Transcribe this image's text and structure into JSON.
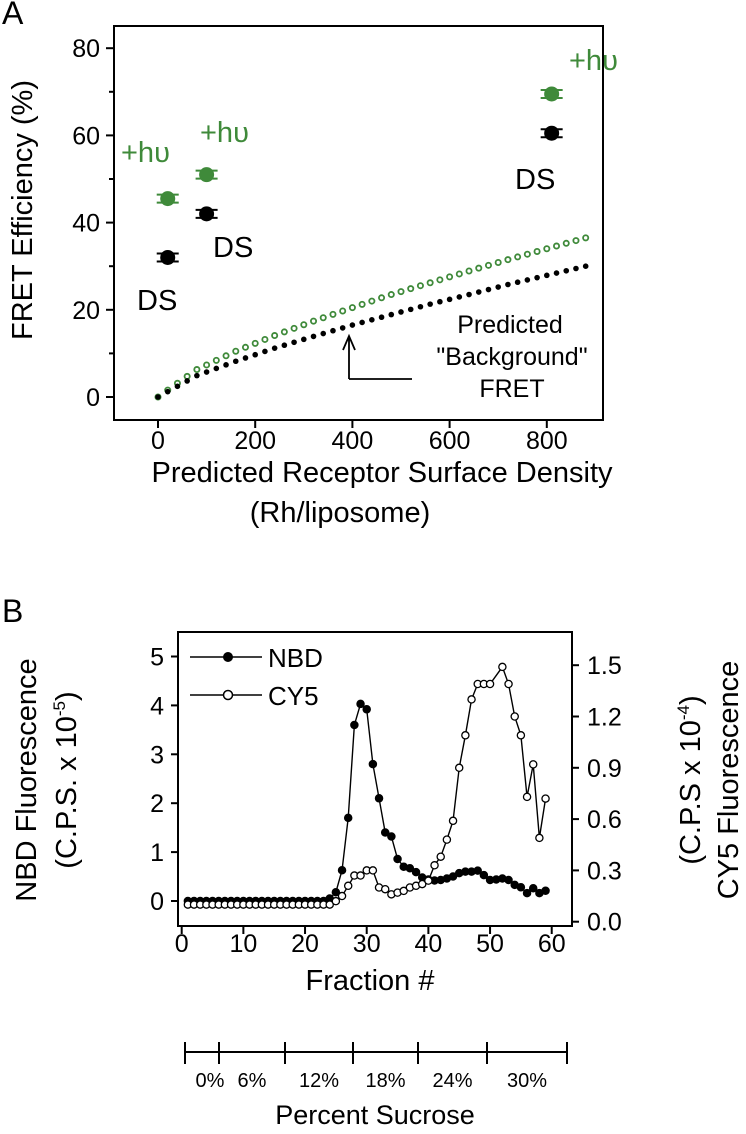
{
  "chart_data": [
    {
      "panel": "A",
      "type": "scatter",
      "panel_label": "A",
      "xlabel": "Predicted Receptor Surface Density",
      "xlabel2": "(Rh/liposome)",
      "ylabel": "FRET Efficiency (%)",
      "xlim": [
        -90,
        900
      ],
      "ylim": [
        -5,
        86
      ],
      "xticks": [
        "0",
        "200",
        "400",
        "600",
        "800"
      ],
      "yticks": [
        "0",
        "20",
        "40",
        "60",
        "80"
      ],
      "colors": {
        "light": "#3f8a3a",
        "dark": "#000000"
      },
      "series": [
        {
          "name": "+hυ",
          "color": "#3f8a3a",
          "points": [
            {
              "x": 20,
              "y": 45.5
            },
            {
              "x": 100,
              "y": 51
            },
            {
              "x": 810,
              "y": 69.5
            }
          ]
        },
        {
          "name": "DS",
          "color": "#000000",
          "points": [
            {
              "x": 20,
              "y": 32
            },
            {
              "x": 100,
              "y": 42
            },
            {
              "x": 810,
              "y": 60.5
            }
          ]
        }
      ],
      "predicted_lines": [
        {
          "name": "predicted +hυ",
          "color": "#3f8a3a",
          "x": [
            0,
            80,
            160,
            240,
            320,
            400,
            480,
            560,
            640,
            720,
            800,
            880
          ],
          "y": [
            0,
            6.3,
            10.5,
            14.1,
            17.4,
            20.5,
            23.5,
            26.2,
            28.9,
            31.5,
            34.0,
            36.5
          ]
        },
        {
          "name": "predicted DS",
          "color": "#000000",
          "x": [
            0,
            80,
            160,
            240,
            320,
            400,
            480,
            560,
            640,
            720,
            800,
            880
          ],
          "y": [
            0,
            4.9,
            8.2,
            11.2,
            13.9,
            16.5,
            18.9,
            21.3,
            23.5,
            25.8,
            27.9,
            30.0
          ]
        }
      ],
      "annotations": {
        "hv": "+hυ",
        "ds": "DS",
        "predicted1": "Predicted",
        "predicted2": "\"Background\"",
        "predicted3": "FRET"
      }
    },
    {
      "panel": "B",
      "type": "line",
      "panel_label": "B",
      "xlabel": "Fraction #",
      "ylabel_left": "NBD Fluorescence",
      "ylabel_left2": "(C.P.S. x 10",
      "ylabel_left_exp": "-5",
      "ylabel_right": "CY5 Fluorescence",
      "ylabel_right2": "(C.P.S x 10",
      "ylabel_right_exp": "-4",
      "xlim": [
        0,
        62
      ],
      "ylim_left": [
        -0.4,
        5.1
      ],
      "ylim_right": [
        -0.05,
        1.6
      ],
      "xticks": [
        "0",
        "10",
        "20",
        "30",
        "40",
        "50",
        "60"
      ],
      "yticks_left": [
        "0",
        "1",
        "2",
        "3",
        "4",
        "5"
      ],
      "yticks_right": [
        "0.0",
        "0.3",
        "0.6",
        "0.9",
        "1.2",
        "1.5"
      ],
      "legend": [
        "NBD",
        "CY5"
      ],
      "legend_position": "top-left",
      "series": [
        {
          "name": "NBD",
          "axis": "left",
          "filled": true,
          "x": [
            1,
            2,
            3,
            4,
            5,
            6,
            7,
            8,
            9,
            10,
            11,
            12,
            13,
            14,
            15,
            16,
            17,
            18,
            19,
            20,
            21,
            22,
            23,
            24,
            25,
            26,
            27,
            28,
            29,
            30,
            31,
            32,
            33,
            34,
            35,
            36,
            37,
            38,
            39,
            40,
            41,
            42,
            43,
            44,
            45,
            46,
            47,
            48,
            49,
            50,
            51,
            52,
            53,
            54,
            55,
            56,
            57,
            58,
            59
          ],
          "y": [
            0,
            0,
            0,
            0,
            0,
            0,
            0,
            0,
            0,
            0,
            0,
            0,
            0,
            0,
            0,
            0,
            0,
            0,
            0,
            0,
            0,
            0,
            0,
            0.05,
            0.18,
            0.63,
            1.7,
            3.6,
            4.03,
            3.92,
            2.8,
            2.1,
            1.4,
            1.32,
            0.86,
            0.7,
            0.67,
            0.59,
            0.48,
            0.44,
            0.42,
            0.43,
            0.46,
            0.5,
            0.57,
            0.6,
            0.6,
            0.62,
            0.53,
            0.43,
            0.44,
            0.46,
            0.43,
            0.33,
            0.28,
            0.16,
            0.26,
            0.16,
            0.21
          ]
        },
        {
          "name": "CY5",
          "axis": "right",
          "filled": false,
          "x": [
            1,
            2,
            3,
            4,
            5,
            6,
            7,
            8,
            9,
            10,
            11,
            12,
            13,
            14,
            15,
            16,
            17,
            18,
            19,
            20,
            21,
            22,
            23,
            24,
            25,
            26,
            27,
            28,
            29,
            30,
            31,
            32,
            33,
            34,
            35,
            36,
            37,
            38,
            39,
            40,
            41,
            42,
            43,
            44,
            45,
            46,
            47,
            48,
            49,
            50,
            52,
            53,
            54,
            55,
            56,
            57,
            58,
            59
          ],
          "y": [
            0.1,
            0.1,
            0.1,
            0.1,
            0.1,
            0.1,
            0.1,
            0.1,
            0.1,
            0.1,
            0.1,
            0.1,
            0.1,
            0.1,
            0.1,
            0.1,
            0.1,
            0.1,
            0.1,
            0.1,
            0.1,
            0.1,
            0.1,
            0.1,
            0.12,
            0.15,
            0.21,
            0.27,
            0.27,
            0.3,
            0.3,
            0.2,
            0.19,
            0.16,
            0.17,
            0.18,
            0.2,
            0.21,
            0.22,
            0.24,
            0.33,
            0.38,
            0.48,
            0.59,
            0.9,
            1.09,
            1.3,
            1.39,
            1.39,
            1.39,
            1.49,
            1.39,
            1.2,
            1.09,
            0.73,
            0.92,
            0.49,
            0.72
          ]
        }
      ],
      "sucrose_axis": {
        "label": "Percent Sucrose",
        "segments": [
          "0%",
          "6%",
          "12%",
          "18%",
          "24%",
          "30%"
        ]
      }
    }
  ]
}
